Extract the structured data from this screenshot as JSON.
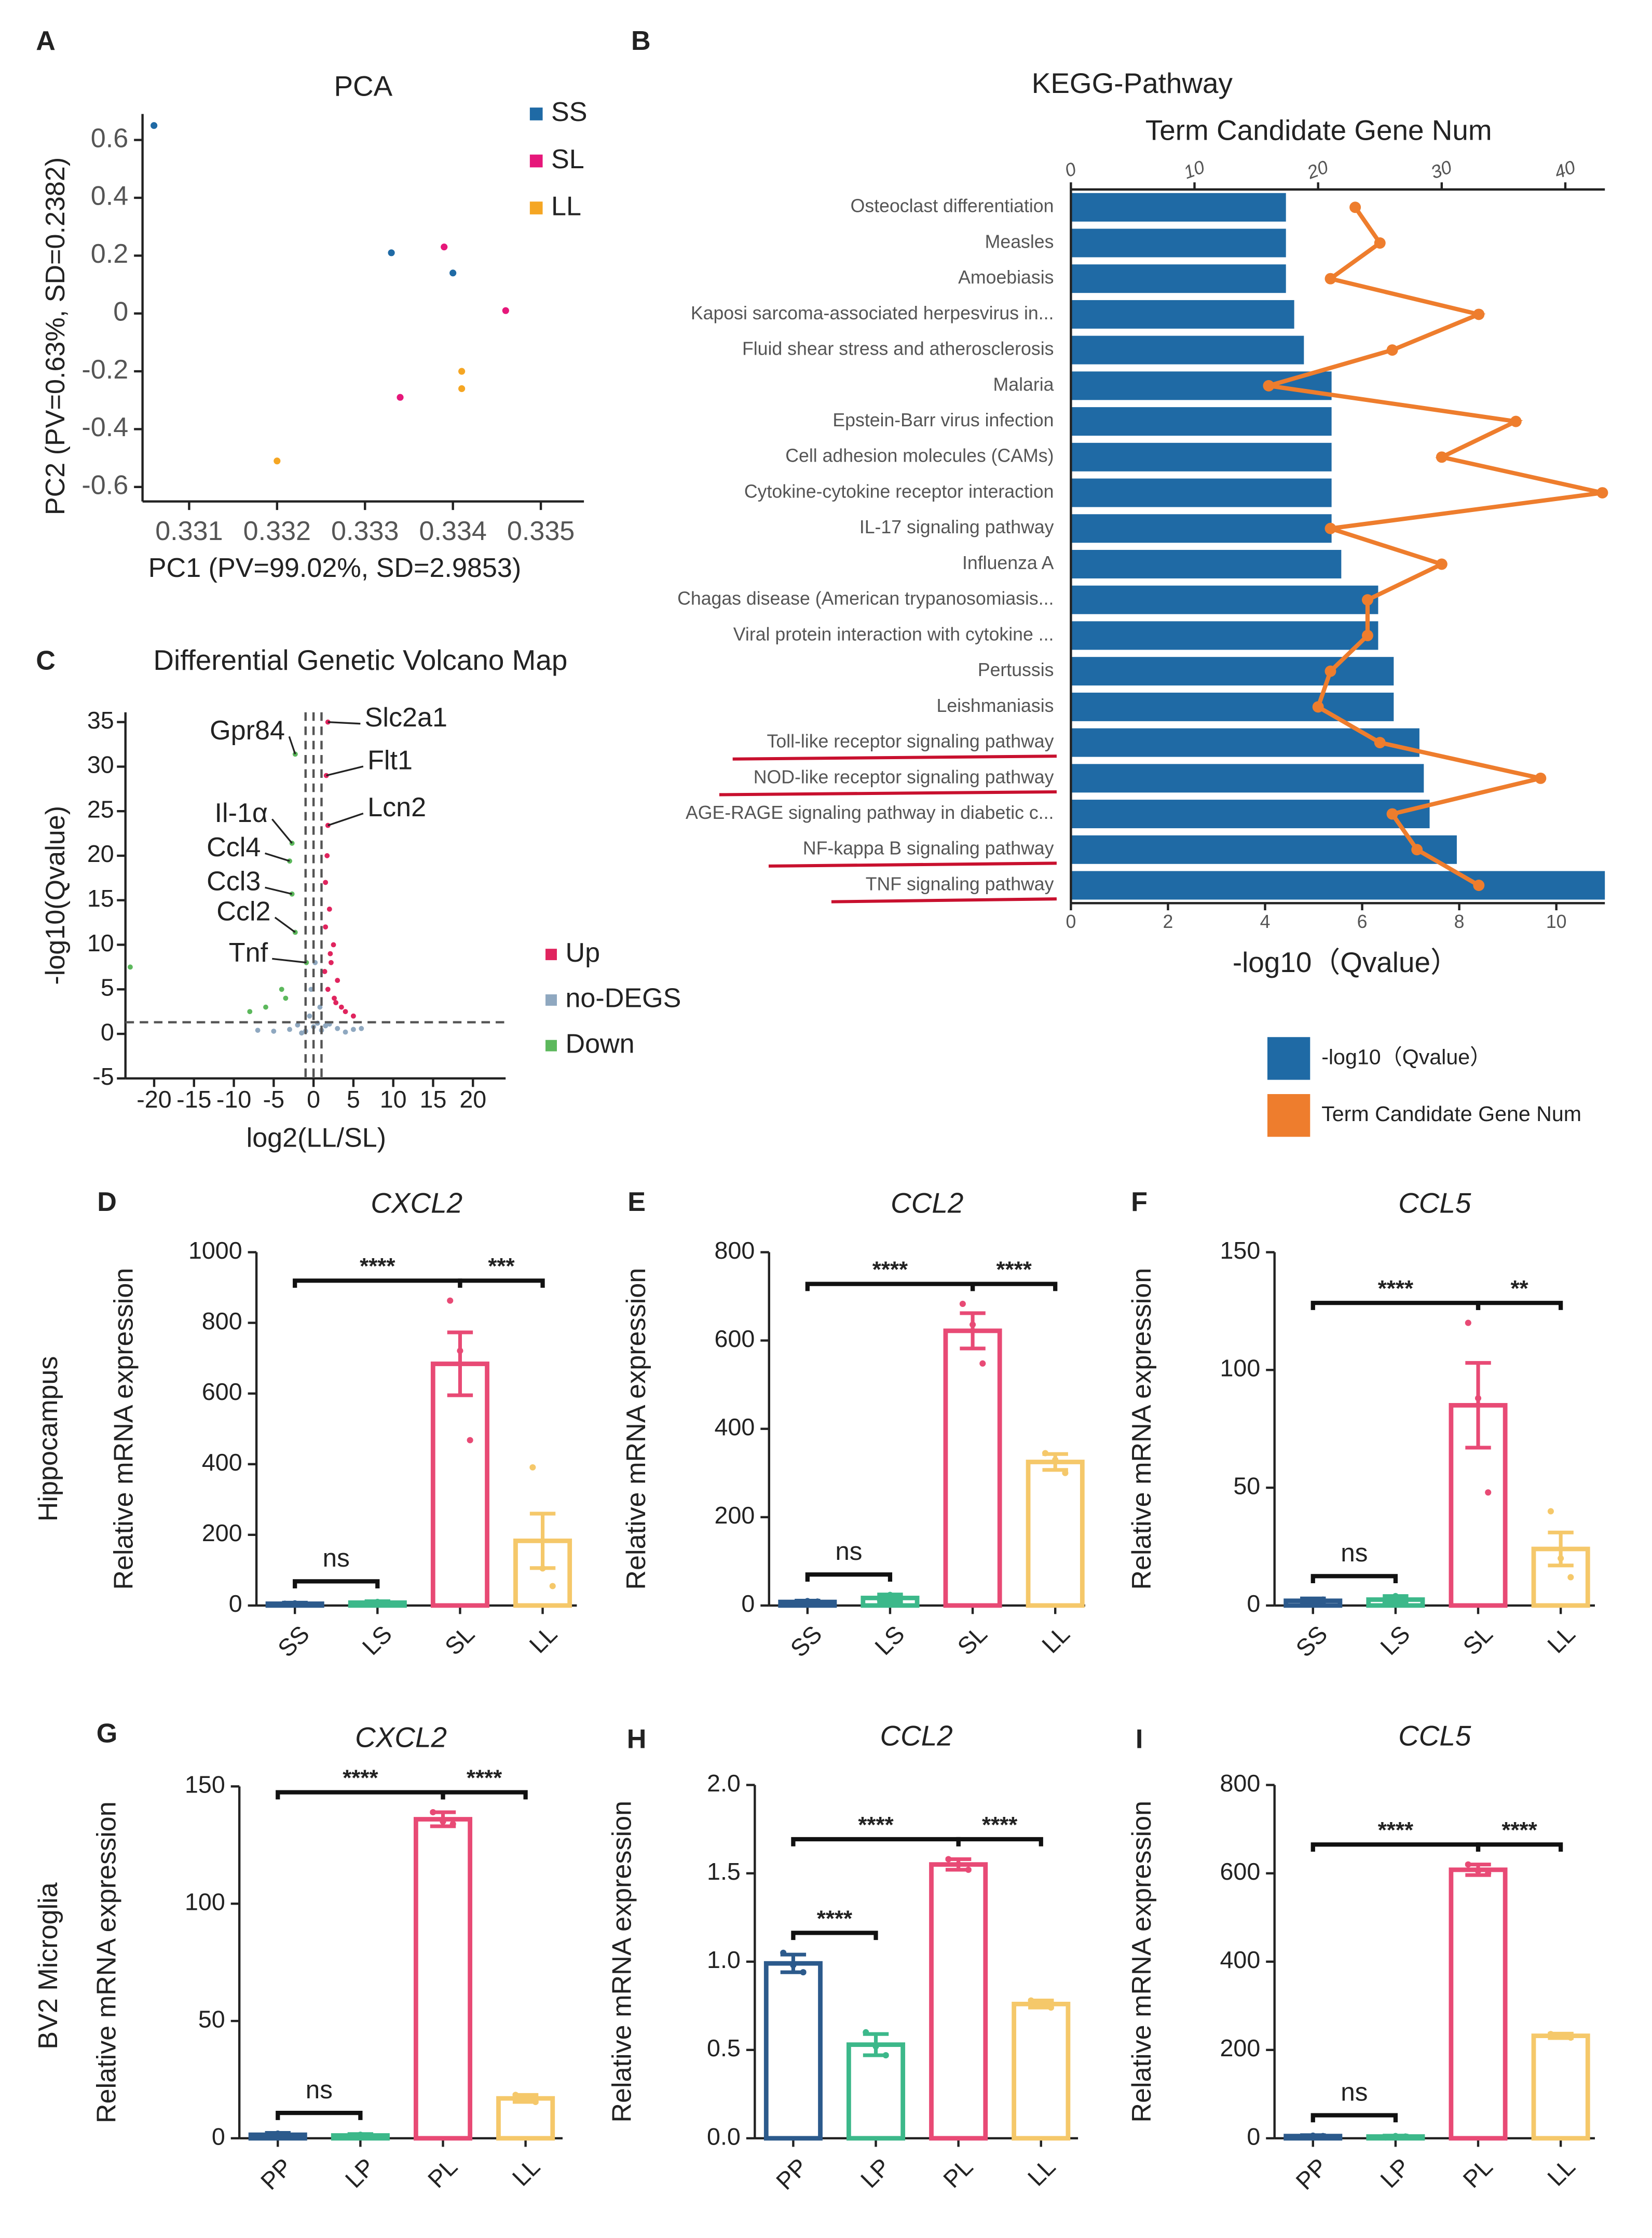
{
  "row_labels": [
    "Hippocampus",
    "BV2 Microglia"
  ],
  "chart_data": [
    {
      "panel": "A",
      "type": "scatter",
      "title": "PCA",
      "x_label": "PC1 (PV=99.02%, SD=2.9853)",
      "y_label": "PC2 (PV=0.63%, SD=0.2382)",
      "xlim": [
        0.33047,
        0.33549
      ],
      "xticks": [
        0.331,
        0.332,
        0.333,
        0.334,
        0.335
      ],
      "ylim": [
        -0.65,
        0.69
      ],
      "yticks": [
        -0.6,
        -0.4,
        -0.2,
        0,
        0.2,
        0.4,
        0.6
      ],
      "legend": "top right",
      "series": [
        {
          "name": "SS",
          "color": "#1f6aa5",
          "x": [
            0.3306,
            0.3333,
            0.334
          ],
          "y": [
            0.65,
            0.21,
            0.14
          ]
        },
        {
          "name": "SL",
          "color": "#e6177a",
          "x": [
            0.3339,
            0.3346,
            0.3334
          ],
          "y": [
            0.23,
            0.01,
            -0.29
          ]
        },
        {
          "name": "LL",
          "color": "#f5a623",
          "x": [
            0.3341,
            0.3341,
            0.332
          ],
          "y": [
            -0.2,
            -0.26,
            -0.51
          ]
        }
      ]
    },
    {
      "panel": "B",
      "type": "hbar_line",
      "title": "KEGG-Pathway",
      "x_label": "-log10（Qvalue）",
      "x2_label": "Term Candidate Gene Num",
      "categories": [
        "Osteoclast differentiation",
        "Measles",
        "Amoebiasis",
        "Kaposi sarcoma-associated herpesvirus in...",
        "Fluid shear stress and atherosclerosis",
        "Malaria",
        "Epstein-Barr virus infection",
        "Cell adhesion molecules (CAMs)",
        "Cytokine-cytokine receptor interaction",
        "IL-17 signaling pathway",
        "Influenza A",
        "Chagas disease (American trypanosomiasis...",
        "Viral protein interaction with cytokine ...",
        "Pertussis",
        "Leishmaniasis",
        "Toll-like receptor signaling pathway",
        "NOD-like receptor signaling pathway",
        "AGE-RAGE signaling pathway in diabetic c...",
        "NF-kappa B signaling pathway",
        "TNF signaling pathway"
      ],
      "xlim": [
        0,
        11
      ],
      "xticks": [
        0,
        2,
        4,
        6,
        8,
        10
      ],
      "x2lim": [
        0,
        43.2
      ],
      "x2ticks": [
        0,
        10,
        20,
        30,
        40
      ],
      "legend": "bottom",
      "highlight": [
        "Toll-like receptor signaling pathway",
        "NOD-like receptor signaling pathway",
        "NF-kappa B signaling pathway",
        "TNF signaling pathway"
      ],
      "highlight_color": "#c8102e",
      "series": [
        {
          "name": "-log10（Qvalue）",
          "color": "#1f6aa5",
          "values": [
            4.43,
            4.43,
            4.43,
            4.6,
            4.8,
            5.37,
            5.37,
            5.37,
            5.37,
            5.37,
            5.57,
            6.33,
            6.33,
            6.65,
            6.65,
            7.18,
            7.27,
            7.39,
            7.95,
            11
          ]
        },
        {
          "name": "Term Candidate Gene Num",
          "color": "#ee7d2d",
          "axis": "x2",
          "values": [
            23,
            25,
            21,
            33,
            26,
            16,
            36,
            30,
            43,
            21,
            30,
            24,
            24,
            21,
            20,
            25,
            38,
            26,
            28,
            33
          ]
        }
      ]
    },
    {
      "panel": "C",
      "type": "volcano",
      "title": "Differential Genetic Volcano Map",
      "x_label": "log2(LL/SL)",
      "y_label": "-log10(Qvalue)",
      "xlim": [
        -23.6,
        24.1
      ],
      "xticks": [
        -20,
        -15,
        -10,
        -5,
        0,
        5,
        10,
        15,
        20
      ],
      "ylim": [
        -5,
        36.1
      ],
      "yticks": [
        -5,
        0,
        5,
        10,
        15,
        20,
        25,
        30,
        35
      ],
      "hline": 1.3,
      "vlines": [
        -1,
        0,
        1
      ],
      "legend": "right",
      "series": [
        {
          "name": "Up",
          "color": "#e0245e",
          "x": [
            1.8,
            1.6,
            1.8,
            1.5,
            2,
            2.5,
            3,
            1.5,
            2.2,
            1.8,
            3.5,
            4,
            2.6,
            1.7,
            2.1,
            1.4,
            2.8,
            5
          ],
          "y": [
            35,
            29,
            23.4,
            17,
            14,
            10,
            6,
            12,
            8,
            5,
            3,
            2.5,
            4,
            20,
            9,
            7,
            3.5,
            2
          ]
        },
        {
          "name": "no-DEGS",
          "color": "#8fa8c0",
          "x": [
            -3,
            -2,
            -1,
            0,
            1,
            2,
            3,
            4,
            -5,
            5,
            -1.5,
            0.5,
            1.5,
            -0.5,
            0.8,
            -7,
            6,
            -0.3,
            0.2
          ],
          "y": [
            0.5,
            1,
            0.3,
            0.8,
            0.4,
            1.1,
            0.6,
            0.2,
            0.3,
            0.5,
            0.1,
            1.2,
            0.9,
            2,
            3,
            0.4,
            0.6,
            5,
            8
          ]
        },
        {
          "name": "Down",
          "color": "#5cb85c",
          "x": [
            -2.3,
            -2.7,
            -3,
            -2.7,
            -2.3,
            -0.9,
            -4,
            -6,
            -8,
            -3.5,
            -23
          ],
          "y": [
            31.4,
            21.4,
            19.4,
            15.7,
            11.4,
            8,
            5,
            3,
            2.5,
            4,
            7.5
          ]
        }
      ],
      "annotations": [
        {
          "text": "Slc2a1",
          "x": 1.8,
          "y": 35
        },
        {
          "text": "Flt1",
          "x": 1.6,
          "y": 29
        },
        {
          "text": "Lcn2",
          "x": 1.8,
          "y": 23.4
        },
        {
          "text": "Gpr84",
          "x": -2.3,
          "y": 31.4
        },
        {
          "text": "Il-1α",
          "x": -2.7,
          "y": 21.4
        },
        {
          "text": "Ccl4",
          "x": -3,
          "y": 19.4
        },
        {
          "text": "Ccl3",
          "x": -2.7,
          "y": 15.7
        },
        {
          "text": "Ccl2",
          "x": -2.3,
          "y": 11.4
        },
        {
          "text": "Tnf",
          "x": -0.9,
          "y": 8
        }
      ]
    },
    {
      "panel": "D",
      "type": "bar",
      "title": "CXCL2",
      "y_label": "Relative mRNA expression",
      "categories": [
        "SS",
        "LS",
        "SL",
        "LL"
      ],
      "colors": [
        "#2c5a8c",
        "#3cb88a",
        "#e84a75",
        "#f5c86a"
      ],
      "values": [
        5,
        8,
        684,
        183
      ],
      "errors": [
        3,
        4,
        89,
        77
      ],
      "points": [
        [
          5,
          6,
          4
        ],
        [
          8,
          10,
          6
        ],
        [
          863,
          721,
          468
        ],
        [
          391,
          105,
          55
        ]
      ],
      "ylim": [
        0,
        1000
      ],
      "yticks": [
        0,
        200,
        400,
        600,
        800,
        1000
      ],
      "brackets": [
        {
          "pair": [
            "SS",
            "LS"
          ],
          "label": "ns"
        },
        {
          "pair": [
            "SS",
            "SL"
          ],
          "label": "****"
        },
        {
          "pair": [
            "SL",
            "LL"
          ],
          "label": "***"
        }
      ]
    },
    {
      "panel": "E",
      "type": "bar",
      "title": "CCL2",
      "y_label": "Relative mRNA expression",
      "categories": [
        "SS",
        "LS",
        "SL",
        "LL"
      ],
      "colors": [
        "#2c5a8c",
        "#3cb88a",
        "#e84a75",
        "#f5c86a"
      ],
      "values": [
        8,
        17,
        622,
        325
      ],
      "errors": [
        3,
        8,
        40,
        18
      ],
      "points": [
        [
          5,
          10,
          9
        ],
        [
          12,
          24,
          15
        ],
        [
          683,
          636,
          548
        ],
        [
          345,
          330,
          300
        ]
      ],
      "ylim": [
        0,
        800
      ],
      "yticks": [
        0,
        200,
        400,
        600,
        800
      ],
      "brackets": [
        {
          "pair": [
            "SS",
            "LS"
          ],
          "label": "ns"
        },
        {
          "pair": [
            "SS",
            "SL"
          ],
          "label": "****"
        },
        {
          "pair": [
            "SL",
            "LL"
          ],
          "label": "****"
        }
      ]
    },
    {
      "panel": "F",
      "type": "bar",
      "title": "CCL5",
      "y_label": "Relative mRNA expression",
      "categories": [
        "SS",
        "LS",
        "SL",
        "LL"
      ],
      "colors": [
        "#2c5a8c",
        "#3cb88a",
        "#e84a75",
        "#f5c86a"
      ],
      "values": [
        2,
        2.5,
        85,
        24
      ],
      "errors": [
        1,
        1.5,
        18,
        7
      ],
      "points": [
        [
          1.5,
          2,
          2.5
        ],
        [
          1,
          4,
          2.5
        ],
        [
          120,
          88,
          48
        ],
        [
          40,
          20,
          12
        ]
      ],
      "ylim": [
        0,
        150
      ],
      "yticks": [
        0,
        50,
        100,
        150
      ],
      "brackets": [
        {
          "pair": [
            "SS",
            "LS"
          ],
          "label": "ns"
        },
        {
          "pair": [
            "SS",
            "SL"
          ],
          "label": "****"
        },
        {
          "pair": [
            "SL",
            "LL"
          ],
          "label": "**"
        }
      ]
    },
    {
      "panel": "G",
      "type": "bar",
      "title": "CXCL2",
      "y_label": "Relative mRNA expression",
      "categories": [
        "PP",
        "LP",
        "PL",
        "LL"
      ],
      "colors": [
        "#2c5a8c",
        "#3cb88a",
        "#e84a75",
        "#f5c86a"
      ],
      "values": [
        1.5,
        1.2,
        136,
        17
      ],
      "errors": [
        0.8,
        0.6,
        3,
        1.5
      ],
      "points": [
        [
          1,
          2,
          1.5
        ],
        [
          1,
          1.5,
          1.1
        ],
        [
          139,
          135,
          134
        ],
        [
          18.5,
          17,
          15.5
        ]
      ],
      "ylim": [
        0,
        150
      ],
      "yticks": [
        0,
        50,
        100,
        150
      ],
      "brackets": [
        {
          "pair": [
            "PP",
            "LP"
          ],
          "label": "ns"
        },
        {
          "pair": [
            "PP",
            "PL"
          ],
          "label": "****"
        },
        {
          "pair": [
            "PL",
            "LL"
          ],
          "label": "****"
        }
      ]
    },
    {
      "panel": "H",
      "type": "bar",
      "title": "CCL2",
      "y_label": "Relative mRNA expression",
      "categories": [
        "PP",
        "LP",
        "PL",
        "LL"
      ],
      "colors": [
        "#2c5a8c",
        "#3cb88a",
        "#e84a75",
        "#f5c86a"
      ],
      "values": [
        0.99,
        0.53,
        1.55,
        0.76
      ],
      "errors": [
        0.05,
        0.06,
        0.03,
        0.02
      ],
      "points": [
        [
          1.05,
          0.98,
          0.94
        ],
        [
          0.6,
          0.52,
          0.47
        ],
        [
          1.58,
          1.55,
          1.52
        ],
        [
          0.78,
          0.76,
          0.74
        ]
      ],
      "ylim": [
        0,
        2
      ],
      "yticks": [
        {
          "value": 0,
          "label": "0.0"
        },
        0.5,
        {
          "value": 1,
          "label": "1.0"
        },
        1.5,
        {
          "value": 2,
          "label": "2.0"
        }
      ],
      "brackets": [
        {
          "pair": [
            "PP",
            "LP"
          ],
          "label": "****"
        },
        {
          "pair": [
            "PP",
            "PL"
          ],
          "label": "****"
        },
        {
          "pair": [
            "PL",
            "LL"
          ],
          "label": "****"
        }
      ]
    },
    {
      "panel": "I",
      "type": "bar",
      "title": "CCL5",
      "y_label": "Relative mRNA expression",
      "categories": [
        "PP",
        "LP",
        "PL",
        "LL"
      ],
      "colors": [
        "#2c5a8c",
        "#3cb88a",
        "#e84a75",
        "#f5c86a"
      ],
      "values": [
        5,
        4,
        608,
        232
      ],
      "errors": [
        2,
        2,
        12,
        5
      ],
      "points": [
        [
          3,
          6,
          5
        ],
        [
          2,
          5,
          4
        ],
        [
          620,
          605,
          600
        ],
        [
          236,
          232,
          228
        ]
      ],
      "ylim": [
        0,
        800
      ],
      "yticks": [
        0,
        200,
        400,
        600,
        800
      ],
      "brackets": [
        {
          "pair": [
            "PP",
            "LP"
          ],
          "label": "ns"
        },
        {
          "pair": [
            "PP",
            "PL"
          ],
          "label": "****"
        },
        {
          "pair": [
            "PL",
            "LL"
          ],
          "label": "****"
        }
      ]
    }
  ]
}
